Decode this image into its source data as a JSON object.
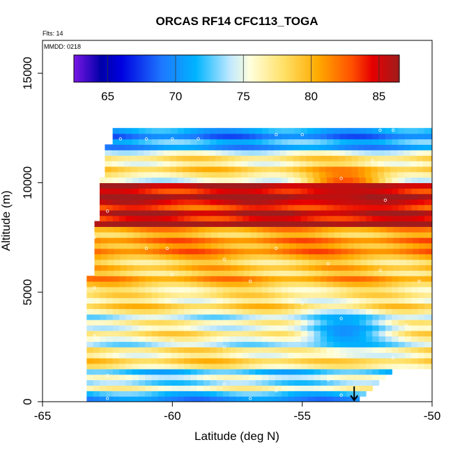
{
  "chart_data": {
    "type": "heatmap",
    "title": "ORCAS RF14 CFC113_TOGA",
    "annotations": [
      "Flts: 14",
      "MMDD: 0218"
    ],
    "xlabel": "Latitude (deg N)",
    "ylabel": "Altitude (m)",
    "xlim": [
      -65,
      -50
    ],
    "ylim": [
      0,
      16500
    ],
    "x_ticks": [
      -65,
      -60,
      -55,
      -50
    ],
    "y_ticks": [
      0,
      5000,
      10000,
      15000
    ],
    "colorbar": {
      "range": [
        62.5,
        86.5
      ],
      "ticks": [
        65,
        70,
        75,
        80,
        85
      ],
      "colors": [
        "#7a16e6",
        "#0000a8",
        "#0000e0",
        "#1e78ff",
        "#00b4ff",
        "#bfe8ff",
        "#ffffdc",
        "#ffe066",
        "#ffaa00",
        "#ff5000",
        "#e60000",
        "#a01c1c"
      ],
      "stops": [
        62.5,
        64.5,
        66.0,
        69.0,
        71.5,
        74.0,
        75.5,
        78.0,
        80.5,
        83.0,
        84.5,
        86.5
      ]
    },
    "field": {
      "lat_range": [
        -63.3,
        -50.0
      ],
      "alt_range": [
        0,
        12500
      ],
      "description_bands": [
        {
          "alt": [
            0,
            400
          ],
          "value": 72
        },
        {
          "alt": [
            400,
            1500
          ],
          "value": 74
        },
        {
          "alt": [
            1500,
            2500
          ],
          "value": 77
        },
        {
          "alt": [
            2500,
            3800
          ],
          "value": 76
        },
        {
          "alt": [
            3800,
            5000
          ],
          "value": 77
        },
        {
          "alt": [
            5000,
            6200
          ],
          "value": 79
        },
        {
          "alt": [
            6200,
            7000
          ],
          "value": 80
        },
        {
          "alt": [
            7000,
            8000
          ],
          "value": 81
        },
        {
          "alt": [
            8000,
            10000
          ],
          "value": 85
        },
        {
          "alt": [
            10000,
            11500
          ],
          "value": 77
        },
        {
          "alt": [
            11500,
            12200
          ],
          "value": 70
        }
      ],
      "features": [
        {
          "name": "low-value-pocket",
          "lat": -53.5,
          "alt": 3100,
          "value": 70
        },
        {
          "name": "high-value-core",
          "lat": -53.5,
          "alt": 9500,
          "value": 85.5
        }
      ]
    },
    "flight_points": [
      {
        "lat": -62.0,
        "alt": 12000
      },
      {
        "lat": -61.0,
        "alt": 12000
      },
      {
        "lat": -60.0,
        "alt": 12000
      },
      {
        "lat": -59.0,
        "alt": 12000
      },
      {
        "lat": -56.0,
        "alt": 12200
      },
      {
        "lat": -55.0,
        "alt": 12200
      },
      {
        "lat": -52.0,
        "alt": 12400
      },
      {
        "lat": -51.5,
        "alt": 12400
      },
      {
        "lat": -52.3,
        "alt": 11000
      },
      {
        "lat": -53.5,
        "alt": 10200
      },
      {
        "lat": -51.8,
        "alt": 9200
      },
      {
        "lat": -62.5,
        "alt": 8700
      },
      {
        "lat": -63.0,
        "alt": 7500
      },
      {
        "lat": -61.0,
        "alt": 7000
      },
      {
        "lat": -60.2,
        "alt": 7000
      },
      {
        "lat": -58.0,
        "alt": 6500
      },
      {
        "lat": -56.0,
        "alt": 7000
      },
      {
        "lat": -54.0,
        "alt": 6300
      },
      {
        "lat": -52.0,
        "alt": 6000
      },
      {
        "lat": -50.5,
        "alt": 5500
      },
      {
        "lat": -63.0,
        "alt": 5200
      },
      {
        "lat": -60.0,
        "alt": 5800
      },
      {
        "lat": -57.0,
        "alt": 5500
      },
      {
        "lat": -55.0,
        "alt": 4500
      },
      {
        "lat": -53.5,
        "alt": 3800
      },
      {
        "lat": -51.0,
        "alt": 3500
      },
      {
        "lat": -63.0,
        "alt": 3000
      },
      {
        "lat": -60.0,
        "alt": 2800
      },
      {
        "lat": -58.0,
        "alt": 2500
      },
      {
        "lat": -54.0,
        "alt": 2300
      },
      {
        "lat": -51.5,
        "alt": 2000
      },
      {
        "lat": -62.5,
        "alt": 1200
      },
      {
        "lat": -58.0,
        "alt": 800
      },
      {
        "lat": -56.0,
        "alt": 500
      },
      {
        "lat": -54.0,
        "alt": 1000
      },
      {
        "lat": -62.5,
        "alt": 150
      },
      {
        "lat": -57.0,
        "alt": 150
      },
      {
        "lat": -53.5,
        "alt": 300
      }
    ],
    "marker": {
      "type": "down-arrow",
      "lat": -53.0,
      "alt_from": 700,
      "alt_to": 0
    }
  }
}
